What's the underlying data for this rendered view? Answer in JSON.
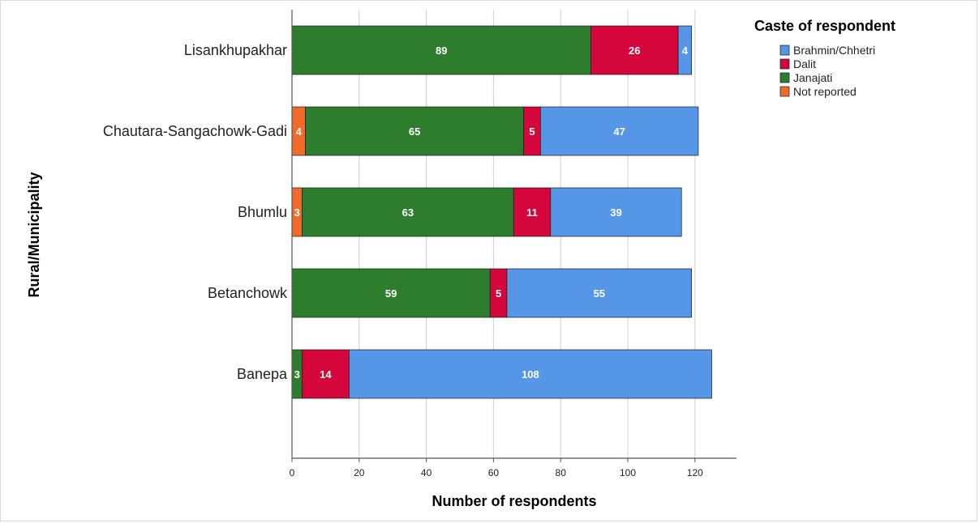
{
  "chart_data": {
    "type": "bar",
    "orientation": "horizontal",
    "stacked": true,
    "categories": [
      "Lisankhupakhar",
      "Chautara-Sangachowk-Gadi",
      "Bhumlu",
      "Betanchowk",
      "Banepa"
    ],
    "series": [
      {
        "name": "Not reported",
        "color": "#f06b2a",
        "values": [
          0,
          4,
          3,
          0,
          0
        ]
      },
      {
        "name": "Janajati",
        "color": "#2e7d2e",
        "values": [
          89,
          65,
          63,
          59,
          3
        ]
      },
      {
        "name": "Dalit",
        "color": "#d4063b",
        "values": [
          26,
          5,
          11,
          5,
          14
        ]
      },
      {
        "name": "Brahmin/Chhetri",
        "color": "#5596e6",
        "values": [
          4,
          47,
          39,
          55,
          108
        ]
      }
    ],
    "xlabel": "Number of respondents",
    "ylabel": "Rural/Municipality",
    "xlim": [
      0,
      130
    ],
    "xticks": [
      0,
      20,
      40,
      60,
      80,
      100,
      120
    ],
    "grid": true,
    "legend": {
      "title": "Caste of respondent",
      "placement": "top-right",
      "order": [
        "Brahmin/Chhetri",
        "Dalit",
        "Janajati",
        "Not reported"
      ]
    }
  }
}
